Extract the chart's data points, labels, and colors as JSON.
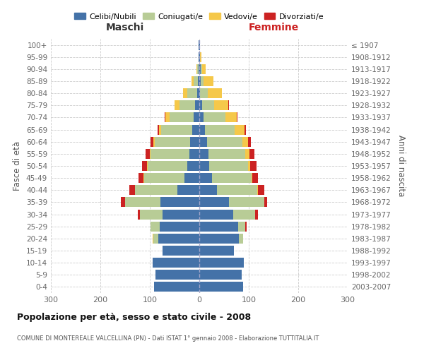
{
  "age_groups": [
    "0-4",
    "5-9",
    "10-14",
    "15-19",
    "20-24",
    "25-29",
    "30-34",
    "35-39",
    "40-44",
    "45-49",
    "50-54",
    "55-59",
    "60-64",
    "65-69",
    "70-74",
    "75-79",
    "80-84",
    "85-89",
    "90-94",
    "95-99",
    "100+"
  ],
  "birth_years": [
    "2003-2007",
    "1998-2002",
    "1993-1997",
    "1988-1992",
    "1983-1987",
    "1978-1982",
    "1973-1977",
    "1968-1972",
    "1963-1967",
    "1958-1962",
    "1953-1957",
    "1948-1952",
    "1943-1947",
    "1938-1942",
    "1933-1937",
    "1928-1932",
    "1923-1927",
    "1918-1922",
    "1913-1917",
    "1908-1912",
    "≤ 1907"
  ],
  "male_celibi": [
    92,
    88,
    95,
    75,
    83,
    80,
    75,
    78,
    45,
    30,
    25,
    20,
    18,
    15,
    12,
    8,
    5,
    3,
    2,
    1,
    1
  ],
  "male_coniugati": [
    0,
    0,
    0,
    0,
    10,
    18,
    45,
    72,
    85,
    82,
    80,
    78,
    72,
    62,
    48,
    32,
    20,
    8,
    2,
    0,
    0
  ],
  "male_vedovi": [
    0,
    0,
    0,
    0,
    2,
    0,
    0,
    0,
    0,
    1,
    1,
    2,
    3,
    5,
    8,
    10,
    8,
    5,
    2,
    0,
    0
  ],
  "male_divorziati": [
    0,
    0,
    0,
    0,
    0,
    0,
    5,
    8,
    12,
    10,
    10,
    8,
    5,
    3,
    2,
    0,
    0,
    0,
    0,
    0,
    0
  ],
  "female_nubili": [
    88,
    85,
    90,
    70,
    80,
    78,
    68,
    60,
    35,
    25,
    20,
    18,
    15,
    12,
    8,
    5,
    2,
    3,
    3,
    2,
    1
  ],
  "female_coniugate": [
    0,
    0,
    0,
    0,
    8,
    15,
    45,
    72,
    82,
    80,
    78,
    75,
    72,
    60,
    45,
    25,
    15,
    6,
    2,
    0,
    0
  ],
  "female_vedove": [
    0,
    0,
    0,
    0,
    0,
    0,
    0,
    0,
    2,
    2,
    5,
    8,
    12,
    20,
    22,
    28,
    28,
    20,
    8,
    2,
    0
  ],
  "female_divorziate": [
    0,
    0,
    0,
    0,
    0,
    2,
    5,
    5,
    12,
    12,
    12,
    10,
    5,
    2,
    2,
    2,
    0,
    0,
    0,
    0,
    0
  ],
  "color_celibi": "#4472a8",
  "color_coniugati": "#b8cc96",
  "color_vedovi": "#f5c84a",
  "color_divorziati": "#cc2222",
  "xlim": 300,
  "title": "Popolazione per età, sesso e stato civile - 2008",
  "subtitle": "COMUNE DI MONTEREALE VALCELLINA (PN) - Dati ISTAT 1° gennaio 2008 - Elaborazione TUTTITALIA.IT",
  "label_maschi": "Maschi",
  "label_femmine": "Femmine",
  "label_fasce": "Fasce di età",
  "label_anni": "Anni di nascita",
  "legend_labels": [
    "Celibi/Nubili",
    "Coniugati/e",
    "Vedovi/e",
    "Divorziati/e"
  ]
}
